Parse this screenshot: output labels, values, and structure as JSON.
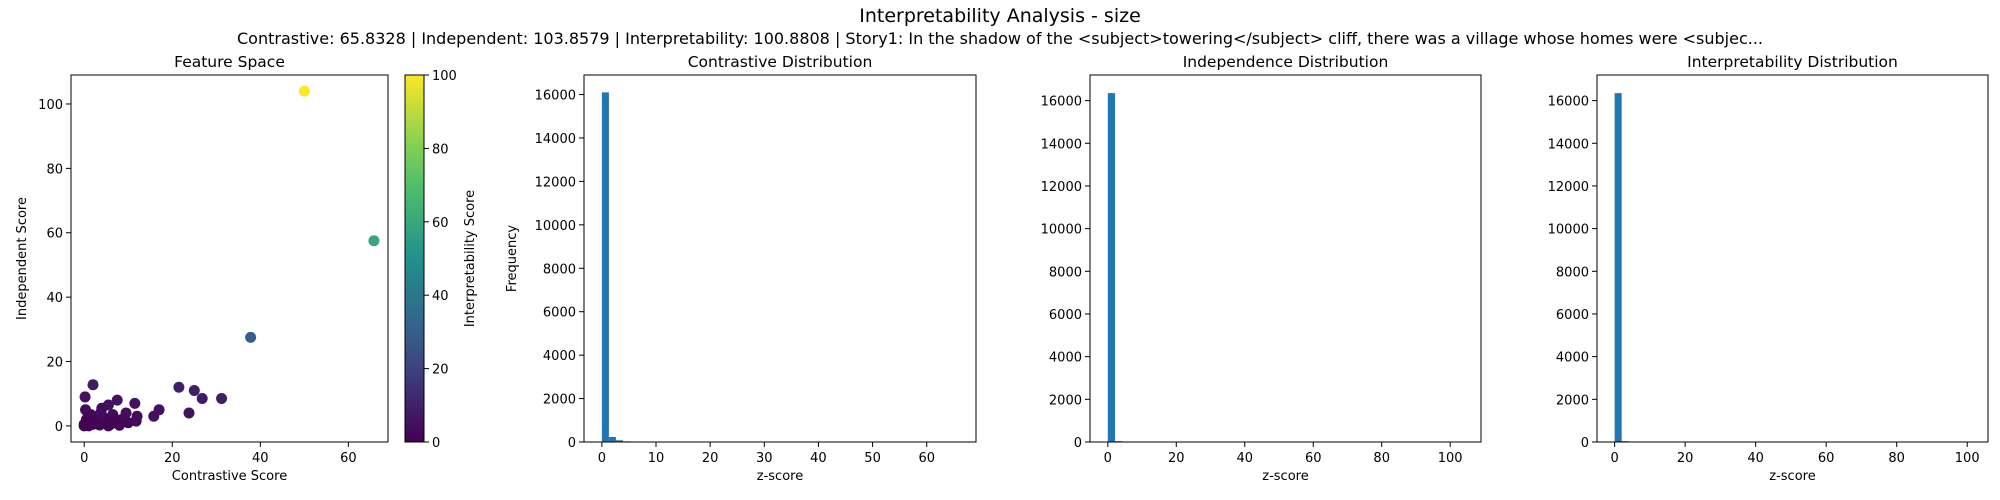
{
  "figure": {
    "title": "Interpretability Analysis - size",
    "subtitle": "Contrastive: 65.8328 | Independent: 103.8579 | Interpretability: 100.8808 | Story1: In the shadow of the <subject>towering</subject> cliff, there was a village whose homes were <subjec..."
  },
  "chart_data": [
    {
      "type": "scatter",
      "title": "Feature Space",
      "xlabel": "Contrastive Score",
      "ylabel": "Independent Score",
      "xlim": [
        -3,
        69
      ],
      "ylim": [
        -5,
        109
      ],
      "xticks": [
        0,
        20,
        40,
        60
      ],
      "yticks": [
        0,
        20,
        40,
        60,
        80,
        100
      ],
      "grid": false,
      "colorbar": {
        "label": "Interpretability Score",
        "range": [
          0,
          100
        ],
        "ticks": [
          0,
          20,
          40,
          60,
          80,
          100
        ],
        "colormap": "viridis"
      },
      "points": [
        {
          "x": 50.0,
          "y": 104.0,
          "c": 100.9
        },
        {
          "x": 65.8,
          "y": 57.5,
          "c": 60.0
        },
        {
          "x": 37.8,
          "y": 27.5,
          "c": 30.0
        },
        {
          "x": 31.2,
          "y": 8.5,
          "c": 9.0
        },
        {
          "x": 26.8,
          "y": 8.5,
          "c": 8.0
        },
        {
          "x": 25.0,
          "y": 11.0,
          "c": 9.0
        },
        {
          "x": 23.8,
          "y": 4.0,
          "c": 5.0
        },
        {
          "x": 21.5,
          "y": 12.0,
          "c": 9.0
        },
        {
          "x": 17.0,
          "y": 5.0,
          "c": 5.0
        },
        {
          "x": 15.8,
          "y": 3.0,
          "c": 4.0
        },
        {
          "x": 11.8,
          "y": 1.5,
          "c": 3.0
        },
        {
          "x": 11.5,
          "y": 7.0,
          "c": 6.0
        },
        {
          "x": 2.0,
          "y": 12.8,
          "c": 8.0
        },
        {
          "x": 0.2,
          "y": 9.0,
          "c": 5.0
        },
        {
          "x": 7.5,
          "y": 8.0,
          "c": 6.0
        },
        {
          "x": 5.5,
          "y": 6.5,
          "c": 5.0
        },
        {
          "x": 4.0,
          "y": 5.5,
          "c": 4.0
        },
        {
          "x": 0.3,
          "y": 5.0,
          "c": 3.0
        },
        {
          "x": 9.5,
          "y": 4.0,
          "c": 4.0
        },
        {
          "x": 6.5,
          "y": 3.5,
          "c": 3.0
        },
        {
          "x": 3.0,
          "y": 3.0,
          "c": 3.0
        },
        {
          "x": 1.5,
          "y": 3.5,
          "c": 2.0
        },
        {
          "x": 8.5,
          "y": 2.0,
          "c": 3.0
        },
        {
          "x": 10.0,
          "y": 1.0,
          "c": 2.0
        },
        {
          "x": 5.0,
          "y": 1.5,
          "c": 2.0
        },
        {
          "x": 2.5,
          "y": 1.0,
          "c": 1.0
        },
        {
          "x": 0.0,
          "y": 0.5,
          "c": 1.0
        },
        {
          "x": 1.0,
          "y": 0.0,
          "c": 0.5
        },
        {
          "x": 3.5,
          "y": 0.3,
          "c": 1.0
        },
        {
          "x": 6.0,
          "y": 0.5,
          "c": 1.0
        },
        {
          "x": 7.0,
          "y": 1.2,
          "c": 1.5
        },
        {
          "x": 8.0,
          "y": 0.2,
          "c": 1.0
        },
        {
          "x": 0.5,
          "y": 2.0,
          "c": 1.0
        },
        {
          "x": 4.5,
          "y": 2.5,
          "c": 2.0
        },
        {
          "x": 2.0,
          "y": 0.5,
          "c": 0.5
        },
        {
          "x": 1.5,
          "y": 1.5,
          "c": 1.0
        },
        {
          "x": 12.0,
          "y": 3.0,
          "c": 3.0
        },
        {
          "x": 3.8,
          "y": 4.2,
          "c": 3.0
        },
        {
          "x": 0.0,
          "y": 0.0,
          "c": 0.0
        },
        {
          "x": 5.5,
          "y": 0.0,
          "c": 0.5
        }
      ]
    },
    {
      "type": "bar",
      "title": "Contrastive Distribution",
      "xlabel": "z-score",
      "ylabel": "Frequency",
      "bin_edges": [
        0,
        1.3,
        2.6,
        3.9,
        5.2,
        6.5
      ],
      "values": [
        16100,
        230,
        80,
        30,
        10
      ],
      "xlim": [
        -3.3,
        69.1
      ],
      "xticks": [
        0,
        10,
        20,
        30,
        40,
        50,
        60
      ],
      "ylim": [
        0,
        16900
      ],
      "yticks": [
        0,
        2000,
        4000,
        6000,
        8000,
        10000,
        12000,
        14000,
        16000
      ],
      "color": "#1f77b4"
    },
    {
      "type": "bar",
      "title": "Independence Distribution",
      "xlabel": "z-score",
      "ylabel": "",
      "bin_edges": [
        0,
        2.1,
        4.2
      ],
      "values": [
        16350,
        40
      ],
      "xlim": [
        -5.2,
        109
      ],
      "xticks": [
        0,
        20,
        40,
        60,
        80,
        100
      ],
      "ylim": [
        0,
        17200
      ],
      "yticks": [
        0,
        2000,
        4000,
        6000,
        8000,
        10000,
        12000,
        14000,
        16000
      ],
      "color": "#1f77b4"
    },
    {
      "type": "bar",
      "title": "Interpretability Distribution",
      "xlabel": "z-score",
      "ylabel": "",
      "bin_edges": [
        0,
        2.0,
        4.0
      ],
      "values": [
        16350,
        40
      ],
      "xlim": [
        -5.0,
        105.9
      ],
      "xticks": [
        0,
        20,
        40,
        60,
        80,
        100
      ],
      "ylim": [
        0,
        17200
      ],
      "yticks": [
        0,
        2000,
        4000,
        6000,
        8000,
        10000,
        12000,
        14000,
        16000
      ],
      "color": "#1f77b4"
    }
  ]
}
